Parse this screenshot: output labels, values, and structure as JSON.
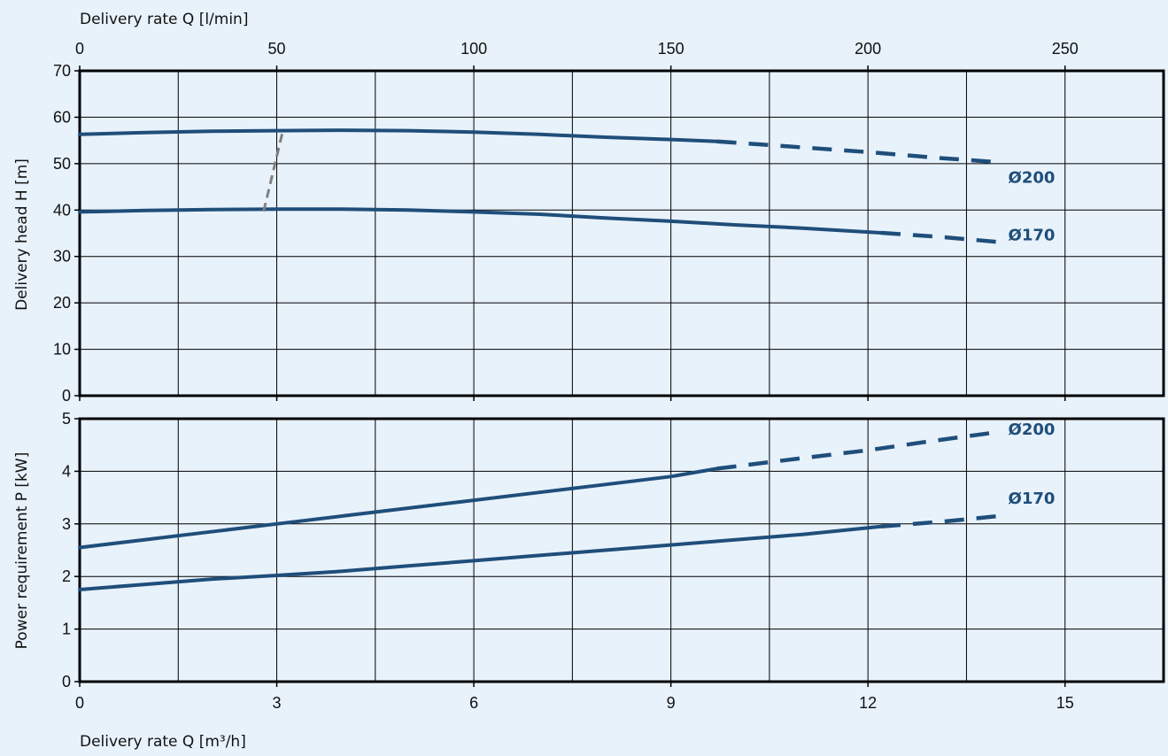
{
  "colors": {
    "curve": "#1f4e7a",
    "operating_limit": "#808080",
    "grid": "#000000",
    "background": "#e8f2fb",
    "plot_background": "#e8f2fb"
  },
  "axes": {
    "top_x_label": "Delivery rate  Q [l/min]",
    "bottom_x_label": "Delivery rate Q [m³/h]",
    "upper_y_label": "Delivery head  H [m]",
    "lower_y_label": "Power requirement  P [kW]"
  },
  "chart_data": [
    {
      "type": "line",
      "panel": "upper",
      "xlabel": "Delivery rate Q [m³/h]",
      "secondary_xlabel": "Delivery rate  Q [l/min]",
      "ylabel": "Delivery head  H [m]",
      "xlim": [
        0,
        16.5
      ],
      "ylim": [
        0,
        70
      ],
      "x_ticks": [
        0,
        3,
        6,
        9,
        12,
        15
      ],
      "secondary_x_ticks": [
        0,
        50,
        100,
        150,
        200,
        250
      ],
      "y_ticks": [
        0,
        10,
        20,
        30,
        40,
        50,
        60,
        70
      ],
      "grid": true,
      "series": [
        {
          "name": "Ø200",
          "solid": [
            [
              0,
              56.3
            ],
            [
              1,
              56.7
            ],
            [
              2,
              57.0
            ],
            [
              3,
              57.1
            ],
            [
              4,
              57.2
            ],
            [
              5,
              57.1
            ],
            [
              6,
              56.8
            ],
            [
              7,
              56.3
            ],
            [
              8,
              55.7
            ],
            [
              9,
              55.2
            ],
            [
              9.7,
              54.8
            ]
          ],
          "dashed": [
            [
              9.7,
              54.8
            ],
            [
              11,
              53.5
            ],
            [
              12,
              52.5
            ],
            [
              13,
              51.3
            ],
            [
              14,
              50.3
            ]
          ]
        },
        {
          "name": "Ø170",
          "solid": [
            [
              0,
              39.6
            ],
            [
              1,
              39.9
            ],
            [
              2,
              40.1
            ],
            [
              3,
              40.2
            ],
            [
              4,
              40.2
            ],
            [
              5,
              40.0
            ],
            [
              6,
              39.6
            ],
            [
              7,
              39.1
            ],
            [
              8,
              38.3
            ],
            [
              9,
              37.6
            ],
            [
              10,
              36.8
            ],
            [
              11,
              36.1
            ],
            [
              12.2,
              35.1
            ]
          ],
          "dashed": [
            [
              12.2,
              35.1
            ],
            [
              13.2,
              34.1
            ],
            [
              14,
              33.1
            ]
          ]
        },
        {
          "name": "",
          "style": "operating-limit",
          "dashed": [
            [
              2.8,
              39.7
            ],
            [
              3.1,
              57.5
            ]
          ]
        }
      ]
    },
    {
      "type": "line",
      "panel": "lower",
      "xlabel": "Delivery rate Q [m³/h]",
      "ylabel": "Power requirement  P [kW]",
      "xlim": [
        0,
        16.5
      ],
      "ylim": [
        0,
        5
      ],
      "x_ticks": [
        0,
        3,
        6,
        9,
        12,
        15
      ],
      "y_ticks": [
        0,
        1,
        2,
        3,
        4,
        5
      ],
      "grid": true,
      "series": [
        {
          "name": "Ø200",
          "solid": [
            [
              0,
              2.55
            ],
            [
              1,
              2.7
            ],
            [
              2,
              2.85
            ],
            [
              3,
              3.0
            ],
            [
              4,
              3.15
            ],
            [
              5,
              3.3
            ],
            [
              6,
              3.45
            ],
            [
              7,
              3.6
            ],
            [
              8,
              3.75
            ],
            [
              9,
              3.9
            ],
            [
              9.7,
              4.05
            ]
          ],
          "dashed": [
            [
              9.7,
              4.05
            ],
            [
              11,
              4.25
            ],
            [
              12,
              4.4
            ],
            [
              13,
              4.58
            ],
            [
              14,
              4.75
            ]
          ]
        },
        {
          "name": "Ø170",
          "solid": [
            [
              0,
              1.75
            ],
            [
              1,
              1.85
            ],
            [
              2,
              1.95
            ],
            [
              3,
              2.02
            ],
            [
              4,
              2.1
            ],
            [
              5,
              2.2
            ],
            [
              6,
              2.3
            ],
            [
              7,
              2.4
            ],
            [
              8,
              2.5
            ],
            [
              9,
              2.6
            ],
            [
              10,
              2.7
            ],
            [
              11,
              2.8
            ],
            [
              12.2,
              2.95
            ]
          ],
          "dashed": [
            [
              12.2,
              2.95
            ],
            [
              13.2,
              3.05
            ],
            [
              14,
              3.15
            ]
          ]
        }
      ]
    }
  ]
}
